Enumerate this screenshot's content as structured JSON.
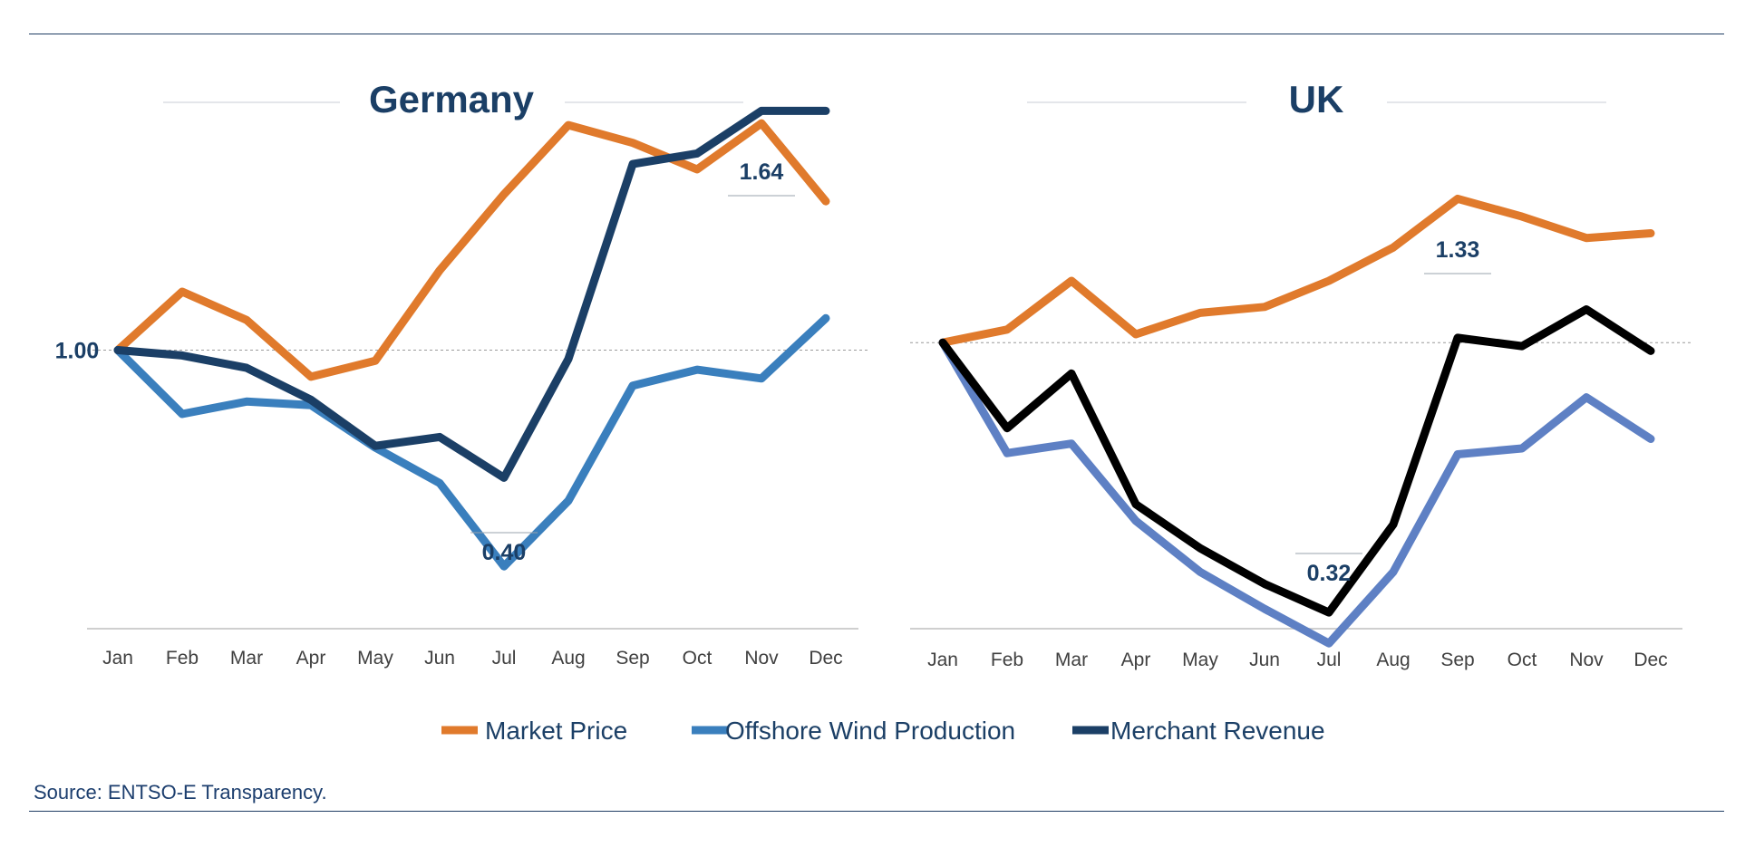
{
  "colors": {
    "market_price": "#e07a2c",
    "offshore_wind_production": "#3a7fbd",
    "offshore_wind_production_uk": "#5e80c4",
    "merchant_revenue": "#1b3f66",
    "merchant_revenue_uk": "#000000",
    "title": "#1b3f66",
    "axis_text": "#404040",
    "reference_line": "#9a9a9a"
  },
  "legend": {
    "items": [
      {
        "label": "Market Price",
        "color": "#e07a2c"
      },
      {
        "label": "Offshore Wind Production",
        "color": "#3a7fbd"
      },
      {
        "label": "Merchant Revenue",
        "color": "#1b3f66"
      }
    ]
  },
  "source": "Source: ENTSO-E Transparency.",
  "reference_value_label": "1.00",
  "chart_data": [
    {
      "type": "line",
      "title": "Germany",
      "x": [
        "Jan",
        "Feb",
        "Mar",
        "Apr",
        "May",
        "Jun",
        "Jul",
        "Aug",
        "Sep",
        "Oct",
        "Nov",
        "Dec"
      ],
      "ylim": [
        -0.5,
        2.25
      ],
      "reference_line": 1.0,
      "grid": false,
      "series": [
        {
          "name": "Market Price",
          "values": [
            1.0,
            1.33,
            1.17,
            0.85,
            0.94,
            1.45,
            1.88,
            2.27,
            2.17,
            2.02,
            2.28,
            1.84
          ]
        },
        {
          "name": "Offshore Wind Production",
          "values": [
            1.0,
            0.64,
            0.71,
            0.69,
            0.45,
            0.25,
            -0.22,
            0.15,
            0.8,
            0.89,
            0.84,
            1.18
          ]
        },
        {
          "name": "Merchant Revenue",
          "values": [
            1.0,
            0.97,
            0.9,
            0.72,
            0.46,
            0.51,
            0.28,
            0.95,
            2.05,
            2.11,
            2.35,
            2.35
          ]
        }
      ],
      "annotations": [
        {
          "label": "1.64",
          "x": "Nov"
        },
        {
          "label": "0.40",
          "x": "Jul"
        }
      ]
    },
    {
      "type": "line",
      "title": "UK",
      "x": [
        "Jan",
        "Feb",
        "Mar",
        "Apr",
        "May",
        "Jun",
        "Jul",
        "Aug",
        "Sep",
        "Oct",
        "Nov",
        "Dec"
      ],
      "ylim": [
        -1.3,
        2.8
      ],
      "reference_line": 1.0,
      "grid": false,
      "series": [
        {
          "name": "Market Price",
          "values": [
            1.0,
            1.11,
            1.52,
            1.07,
            1.25,
            1.3,
            1.52,
            1.8,
            2.21,
            2.06,
            1.88,
            1.92
          ]
        },
        {
          "name": "Offshore Wind Production",
          "values": [
            1.0,
            0.07,
            0.15,
            -0.5,
            -0.93,
            -1.24,
            -1.53,
            -0.93,
            0.06,
            0.11,
            0.54,
            0.19
          ]
        },
        {
          "name": "Merchant Revenue",
          "values": [
            1.0,
            0.28,
            0.74,
            -0.36,
            -0.73,
            -1.03,
            -1.27,
            -0.53,
            1.04,
            0.97,
            1.28,
            0.93
          ]
        }
      ],
      "annotations": [
        {
          "label": "1.33",
          "x": "Sep"
        },
        {
          "label": "0.32",
          "x": "Jul"
        }
      ]
    }
  ]
}
